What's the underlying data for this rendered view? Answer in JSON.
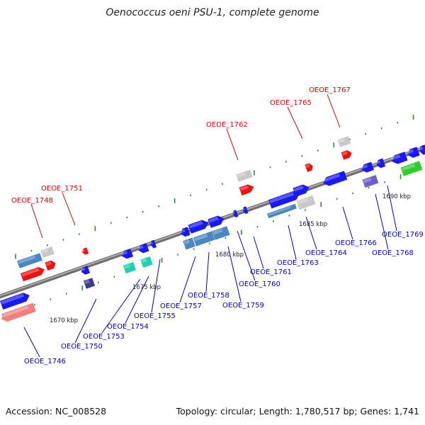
{
  "title": "Oenococcus oeni PSU-1, complete genome",
  "footer": {
    "accession": "Accession: NC_008528",
    "summary": "Topology: circular; Length: 1,780,517 bp; Genes: 1,741"
  },
  "colors": {
    "backbone": "#808080",
    "tick": "#2e8b2e",
    "label_red": "#e00000",
    "label_blue": "#0000cc",
    "cds_blue": "#1a1aee",
    "cds_steel": "#4a86c0",
    "cds_red": "#ee1111",
    "cds_pink": "#f08080",
    "cds_gray": "#c8c8c8",
    "cds_cyan": "#20d0b0",
    "cds_navy": "#3a3a90",
    "cds_purple": "#7060c8",
    "cds_green": "#30cc30"
  },
  "scale_labels": [
    "1670 kbp",
    "1675 kbp",
    "1680 kbp",
    "1685 kbp",
    "1690 kbp"
  ],
  "gene_labels_red": [
    "OEOE_1748",
    "OEOE_1751",
    "OEOE_1762",
    "OEOE_1765",
    "OEOE_1767"
  ],
  "gene_labels_blue": [
    "OEOE_1746",
    "OEOE_1750",
    "OEOE_1753",
    "OEOE_1754",
    "OEOE_1755",
    "OEOE_1757",
    "OEOE_1758",
    "OEOE_1759",
    "OEOE_1760",
    "OEOE_1761",
    "OEOE_1763",
    "OEOE_1764",
    "OEOE_1766",
    "OEOE_1768",
    "OEOE_1769"
  ]
}
